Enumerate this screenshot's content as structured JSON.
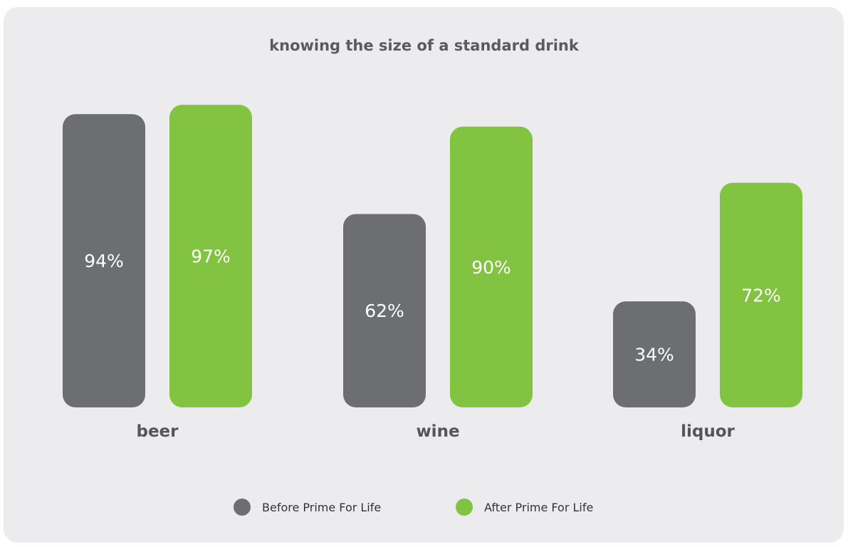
{
  "chart_data": {
    "type": "bar",
    "title": "knowing the size of a standard drink",
    "categories": [
      "beer",
      "wine",
      "liquor"
    ],
    "series": [
      {
        "name": "Before Prime For Life",
        "values": [
          94,
          62,
          34
        ],
        "labels": [
          "94%",
          "62%",
          "34%"
        ],
        "color": "#6d6e71"
      },
      {
        "name": "After Prime For Life",
        "values": [
          97,
          90,
          72
        ],
        "labels": [
          "97%",
          "90%",
          "72%"
        ],
        "color": "#82c341"
      }
    ],
    "unit": "%",
    "grid": false,
    "legend": "bottom-center"
  }
}
